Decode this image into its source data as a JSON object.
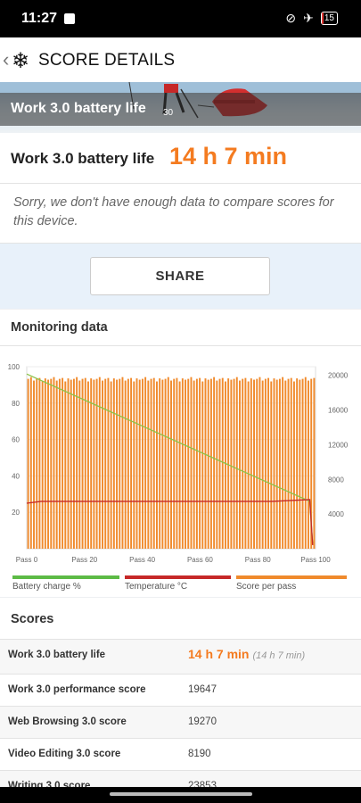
{
  "status": {
    "time": "11:27",
    "battery": "15",
    "battery_level": 0.15,
    "icons": [
      "notification-icon",
      "vibrate-off-icon",
      "airplane-icon",
      "battery-icon"
    ]
  },
  "appbar": {
    "back_glyph": "‹",
    "logo_glyph": "❄",
    "title": "SCORE DETAILS"
  },
  "hero": {
    "title": "Work 3.0 battery life",
    "bib": "30"
  },
  "result": {
    "label": "Work 3.0 battery life",
    "value": "14 h 7 min"
  },
  "notice": "Sorry, we don't have enough data to compare scores for this device.",
  "share_label": "SHARE",
  "monitoring": {
    "title": "Monitoring data",
    "legend": [
      {
        "label": "Battery charge %",
        "color": "#5dbb46"
      },
      {
        "label": "Temperature °C",
        "color": "#c62828"
      },
      {
        "label": "Score per pass",
        "color": "#f08a2c"
      }
    ]
  },
  "chart_data": {
    "type": "bar",
    "x_ticks": [
      "Pass 0",
      "Pass 20",
      "Pass 40",
      "Pass 60",
      "Pass 80",
      "Pass 100"
    ],
    "y_left_ticks": [
      "100",
      "80",
      "60",
      "40",
      "20"
    ],
    "y_right_ticks": [
      "20000",
      "16000",
      "12000",
      "8000",
      "4000"
    ],
    "ylim_left": [
      0,
      100
    ],
    "ylim_right": [
      0,
      21000
    ],
    "xlim": [
      0,
      100
    ],
    "series": [
      {
        "name": "Score per pass",
        "axis": "right",
        "pattern": [
          19600,
          19800,
          19400,
          19600,
          19700,
          19300,
          19650,
          19500
        ],
        "passes": 101
      },
      {
        "name": "Battery charge %",
        "axis": "left",
        "x": [
          0,
          98,
          99
        ],
        "y": [
          96,
          26,
          3
        ]
      },
      {
        "name": "Temperature °C",
        "axis": "left",
        "x": [
          0,
          5,
          85,
          98,
          99
        ],
        "y": [
          25,
          26,
          26,
          27,
          2
        ]
      }
    ]
  },
  "scores": {
    "title": "Scores",
    "rows": [
      {
        "name": "Work 3.0 battery life",
        "value": "14 h 7 min",
        "sub": "(14 h 7 min)"
      },
      {
        "name": "Work 3.0 performance score",
        "value": "19647"
      },
      {
        "name": "Web Browsing 3.0 score",
        "value": "19270"
      },
      {
        "name": "Video Editing 3.0 score",
        "value": "8190"
      },
      {
        "name": "Writing 3.0 score",
        "value": "23853"
      }
    ]
  }
}
